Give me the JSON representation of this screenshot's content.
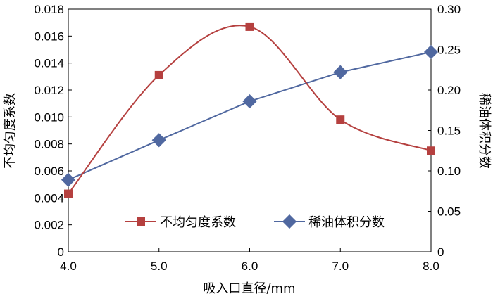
{
  "chart_data": {
    "type": "line",
    "x": [
      4.0,
      5.0,
      6.0,
      7.0,
      8.0
    ],
    "x_tick_labels": [
      "4.0",
      "5.0",
      "6.0",
      "7.0",
      "8.0"
    ],
    "xlim": [
      4.0,
      8.0
    ],
    "xlabel": "吸入口直径/mm",
    "y_left": {
      "label": "不均匀度系数",
      "lim": [
        0,
        0.018
      ],
      "tick_values": [
        0,
        0.002,
        0.004,
        0.006,
        0.008,
        0.01,
        0.012,
        0.014,
        0.016,
        0.018
      ],
      "tick_labels": [
        "0",
        "0.002",
        "0.004",
        "0.006",
        "0.008",
        "0.010",
        "0.012",
        "0.014",
        "0.016",
        "0.018"
      ]
    },
    "y_right": {
      "label": "稀油体积分数",
      "lim": [
        0,
        0.3
      ],
      "tick_values": [
        0,
        0.05,
        0.1,
        0.15,
        0.2,
        0.25,
        0.3
      ],
      "tick_labels": [
        "0",
        "0.05",
        "0.10",
        "0.15",
        "0.20",
        "0.25",
        "0.30"
      ]
    },
    "series": [
      {
        "name": "不均匀度系数",
        "axis": "left",
        "marker": "square",
        "color": "#b5403f",
        "curve": "smooth",
        "values": [
          0.0043,
          0.0131,
          0.0167,
          0.0098,
          0.0075
        ]
      },
      {
        "name": "稀油体积分数",
        "axis": "right",
        "marker": "diamond",
        "color": "#5068a0",
        "curve": "straight",
        "values": [
          0.089,
          0.138,
          0.186,
          0.222,
          0.247
        ]
      }
    ],
    "legend": {
      "placement": "bottom-center"
    },
    "grid": false
  }
}
